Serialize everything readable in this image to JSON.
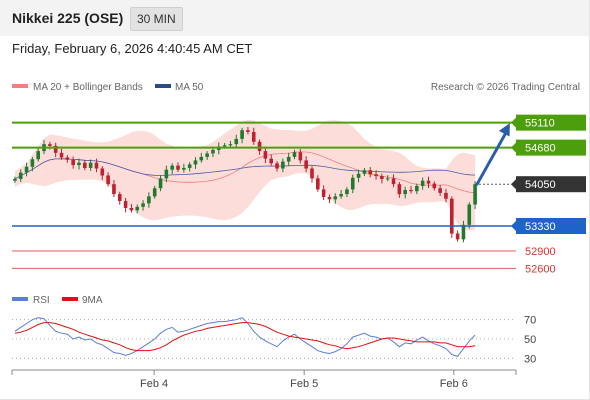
{
  "header": {
    "instrument": "Nikkei 225 (OSE)",
    "timeframe": "30 MIN"
  },
  "datetime": "Friday, February 6, 2026 4:40:45 AM CET",
  "legend": {
    "bollinger": "MA 20 + Bollinger Bands",
    "ma50": "MA 50",
    "copyright": "Research © 2026 Trading Central",
    "rsi": "RSI",
    "rsi_ma": "9MA"
  },
  "colors": {
    "resistance": "#4d9e0d",
    "support": "#1e64c8",
    "target": "#e03030",
    "bb_band": "#fdd9d6",
    "bb_mid": "#f08080",
    "ma50": "#4a5fa8",
    "candle_up": "#1f7a2e",
    "candle_down": "#c0202f",
    "current": "#333333",
    "rsi": "#5b7fd6",
    "rsi_ma": "#e01010",
    "arrow": "#2a5fa8"
  },
  "chart_data": [
    {
      "type": "candlestick",
      "ylim": [
        52400,
        55500
      ],
      "x_labels": [
        "Feb 4",
        "Feb 5",
        "Feb 6"
      ],
      "levels": [
        {
          "label": "55110",
          "value": 55110,
          "kind": "resistance"
        },
        {
          "label": "54680",
          "value": 54680,
          "kind": "resistance"
        },
        {
          "label": "54050",
          "value": 54050,
          "kind": "current"
        },
        {
          "label": "53330",
          "value": 53330,
          "kind": "support"
        },
        {
          "label": "52900",
          "value": 52900,
          "kind": "target"
        },
        {
          "label": "52600",
          "value": 52600,
          "kind": "target"
        }
      ],
      "close_approx": [
        54140,
        54250,
        54350,
        54480,
        54620,
        54740,
        54710,
        54590,
        54510,
        54470,
        54380,
        54420,
        54330,
        54420,
        54320,
        54200,
        54050,
        53880,
        53760,
        53640,
        53600,
        53660,
        53720,
        53840,
        53980,
        54150,
        54300,
        54370,
        54300,
        54330,
        54390,
        54460,
        54520,
        54580,
        54640,
        54700,
        54720,
        54740,
        54830,
        54980,
        54950,
        54780,
        54620,
        54490,
        54410,
        54320,
        54440,
        54520,
        54600,
        54460,
        54320,
        54150,
        53960,
        53830,
        53790,
        53840,
        53880,
        53960,
        54160,
        54230,
        54290,
        54220,
        54190,
        54140,
        54150,
        54050,
        53880,
        53950,
        53930,
        54020,
        54110,
        54060,
        53980,
        53900,
        53800,
        53200,
        53100,
        53350,
        53700,
        54050
      ],
      "arrow": {
        "from": 54050,
        "to": 55110
      }
    },
    {
      "type": "line",
      "name": "RSI",
      "ylim": [
        20,
        80
      ],
      "y_ticks": [
        70,
        50,
        30
      ],
      "values": [
        58,
        62,
        66,
        70,
        72,
        71,
        64,
        58,
        56,
        55,
        50,
        52,
        49,
        50,
        46,
        44,
        40,
        36,
        35,
        33,
        35,
        38,
        42,
        46,
        50,
        56,
        60,
        62,
        57,
        58,
        60,
        62,
        64,
        66,
        67,
        68,
        68,
        69,
        70,
        72,
        66,
        58,
        52,
        48,
        45,
        42,
        48,
        52,
        55,
        50,
        46,
        42,
        38,
        36,
        35,
        37,
        40,
        45,
        52,
        54,
        56,
        53,
        52,
        50,
        51,
        47,
        42,
        46,
        45,
        49,
        52,
        48,
        45,
        43,
        40,
        34,
        32,
        40,
        48,
        54
      ],
      "ma9_values": [
        56,
        57,
        59,
        62,
        65,
        67,
        67,
        66,
        64,
        62,
        60,
        57,
        55,
        53,
        51,
        49,
        48,
        46,
        44,
        41,
        39,
        38,
        38,
        38,
        39,
        41,
        44,
        48,
        51,
        54,
        56,
        58,
        59,
        61,
        62,
        63,
        64,
        65,
        66,
        67,
        67,
        66,
        65,
        63,
        60,
        57,
        55,
        53,
        52,
        51,
        50,
        49,
        48,
        46,
        44,
        43,
        41,
        40,
        41,
        42,
        44,
        46,
        48,
        50,
        51,
        51,
        50,
        49,
        48,
        47,
        47,
        47,
        47,
        46,
        46,
        44,
        42,
        42,
        42,
        43
      ]
    }
  ]
}
